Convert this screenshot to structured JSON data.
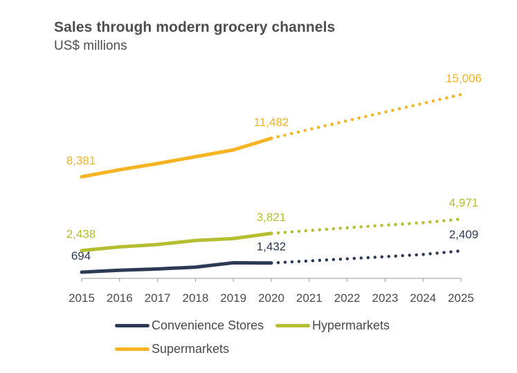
{
  "chart_data": {
    "type": "line",
    "title": "Sales through modern grocery channels",
    "subtitle": "US$ millions",
    "xlabel": "",
    "ylabel": "",
    "categories": [
      "2015",
      "2016",
      "2017",
      "2018",
      "2019",
      "2020",
      "2021",
      "2022",
      "2023",
      "2024",
      "2025"
    ],
    "actual_through": "2020",
    "forecast_from": "2020",
    "ylim": [
      0,
      16000
    ],
    "grid": false,
    "legend_position": "bottom",
    "series": [
      {
        "name": "Convenience Stores",
        "color": "#2d3a55",
        "values": [
          694,
          850,
          950,
          1100,
          1450,
          1432,
          1600,
          1770,
          1940,
          2120,
          2409
        ],
        "labels": [
          {
            "index": 0,
            "text": "694"
          },
          {
            "index": 5,
            "text": "1,432"
          },
          {
            "index": 10,
            "text": "2,409"
          }
        ],
        "label_color": "#2d3a55"
      },
      {
        "name": "Hypermarkets",
        "color": "#b5bd30",
        "values": [
          2438,
          2730,
          2920,
          3250,
          3400,
          3821,
          4050,
          4270,
          4480,
          4680,
          4971
        ],
        "labels": [
          {
            "index": 0,
            "text": "2,438"
          },
          {
            "index": 5,
            "text": "3,821"
          },
          {
            "index": 10,
            "text": "4,971"
          }
        ],
        "label_color": "#b5bd30"
      },
      {
        "name": "Supermarkets",
        "color": "#f6b322",
        "values": [
          8381,
          8950,
          9450,
          10000,
          10550,
          11482,
          12200,
          12900,
          13600,
          14300,
          15006
        ],
        "labels": [
          {
            "index": 0,
            "text": "8,381"
          },
          {
            "index": 5,
            "text": "11,482"
          },
          {
            "index": 10,
            "text": "15,006"
          }
        ],
        "label_color": "#f6b322"
      }
    ]
  }
}
